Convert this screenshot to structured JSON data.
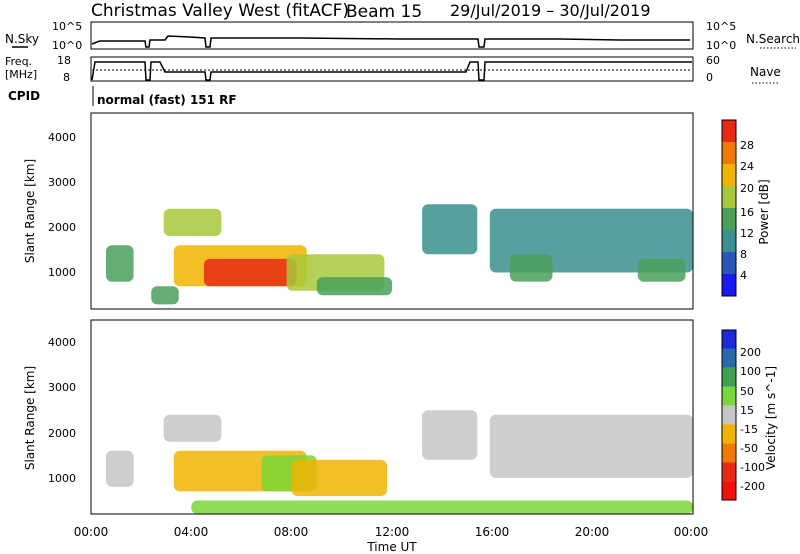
{
  "header": {
    "title": "Christmas Valley West (fitACF)",
    "beam": "Beam 15",
    "date_range": "29/Jul/2019 – 30/Jul/2019"
  },
  "param_panel": {
    "nsky_label": "N.Sky",
    "nsky_ticks": [
      "10^5",
      "10^0"
    ],
    "nsearch_label": "N.Search",
    "nsearch_ticks": [
      "10^5",
      "10^0"
    ],
    "freq_label_1": "Freq.",
    "freq_label_2": "[MHz]",
    "freq_ticks": [
      "18",
      "8"
    ],
    "nave_label": "Nave",
    "nave_ticks": [
      "60",
      "0"
    ],
    "cpid_label": "CPID",
    "cpid_value": "normal (fast) 151 RF"
  },
  "chart_data": [
    {
      "type": "heatmap",
      "name": "power",
      "ylabel": "Slant Range [km]",
      "yticks": [
        "1000",
        "2000",
        "3000",
        "4000"
      ],
      "ylim": [
        200,
        4500
      ],
      "xlim_hours": [
        0,
        24
      ],
      "colorbar": {
        "label": "Power [dB]",
        "ticks": [
          "4",
          "8",
          "12",
          "16",
          "20",
          "24",
          "28"
        ],
        "colors": [
          "#1a1af0",
          "#2b55b8",
          "#3a8f8f",
          "#4aa05a",
          "#a8c83a",
          "#f0b400",
          "#f07a00",
          "#e82a14"
        ]
      },
      "regions": [
        {
          "t0": 0.6,
          "t1": 1.7,
          "r0": 800,
          "r1": 1600,
          "level": 3
        },
        {
          "t0": 2.4,
          "t1": 3.5,
          "r0": 300,
          "r1": 700,
          "level": 3
        },
        {
          "t0": 2.9,
          "t1": 5.2,
          "r0": 1800,
          "r1": 2400,
          "level": 4
        },
        {
          "t0": 3.3,
          "t1": 8.6,
          "r0": 700,
          "r1": 1600,
          "level": 5
        },
        {
          "t0": 4.5,
          "t1": 8.2,
          "r0": 700,
          "r1": 1300,
          "level": 7
        },
        {
          "t0": 7.8,
          "t1": 11.7,
          "r0": 600,
          "r1": 1400,
          "level": 4
        },
        {
          "t0": 9.0,
          "t1": 12.0,
          "r0": 500,
          "r1": 900,
          "level": 3
        },
        {
          "t0": 13.2,
          "t1": 15.4,
          "r0": 1400,
          "r1": 2500,
          "level": 2
        },
        {
          "t0": 15.9,
          "t1": 24.0,
          "r0": 1000,
          "r1": 2400,
          "level": 2
        },
        {
          "t0": 16.7,
          "t1": 18.4,
          "r0": 800,
          "r1": 1400,
          "level": 3
        },
        {
          "t0": 21.8,
          "t1": 23.7,
          "r0": 800,
          "r1": 1300,
          "level": 3
        }
      ]
    },
    {
      "type": "heatmap",
      "name": "velocity",
      "ylabel": "Slant Range [km]",
      "yticks": [
        "1000",
        "2000",
        "3000",
        "4000"
      ],
      "ylim": [
        200,
        4500
      ],
      "xlim_hours": [
        0,
        24
      ],
      "xticks": [
        "00:00",
        "04:00",
        "08:00",
        "12:00",
        "16:00",
        "20:00",
        "00:00"
      ],
      "xlabel": "Time UT",
      "colorbar": {
        "label": "Velocity [m s^-1]",
        "ticks": [
          "200",
          "100",
          "50",
          "15",
          "-15",
          "-50",
          "-100",
          "-200"
        ],
        "colors": [
          "#1a2ad8",
          "#2a6aa8",
          "#3f9f4f",
          "#7ad63a",
          "#c6c6c6",
          "#f0b400",
          "#f07a00",
          "#e82a14",
          "#f01010"
        ]
      },
      "regions": [
        {
          "t0": 0.6,
          "t1": 1.7,
          "r0": 800,
          "r1": 1600,
          "level": 4
        },
        {
          "t0": 2.9,
          "t1": 5.2,
          "r0": 1800,
          "r1": 2400,
          "level": 4
        },
        {
          "t0": 3.3,
          "t1": 8.6,
          "r0": 700,
          "r1": 1600,
          "level": 5
        },
        {
          "t0": 6.8,
          "t1": 9.0,
          "r0": 700,
          "r1": 1500,
          "level": 3
        },
        {
          "t0": 8.0,
          "t1": 11.8,
          "r0": 600,
          "r1": 1400,
          "level": 5
        },
        {
          "t0": 13.2,
          "t1": 15.4,
          "r0": 1400,
          "r1": 2500,
          "level": 4
        },
        {
          "t0": 15.9,
          "t1": 24.0,
          "r0": 1000,
          "r1": 2400,
          "level": 4
        },
        {
          "t0": 4.0,
          "t1": 24.0,
          "r0": 200,
          "r1": 500,
          "level": 3
        }
      ]
    }
  ]
}
